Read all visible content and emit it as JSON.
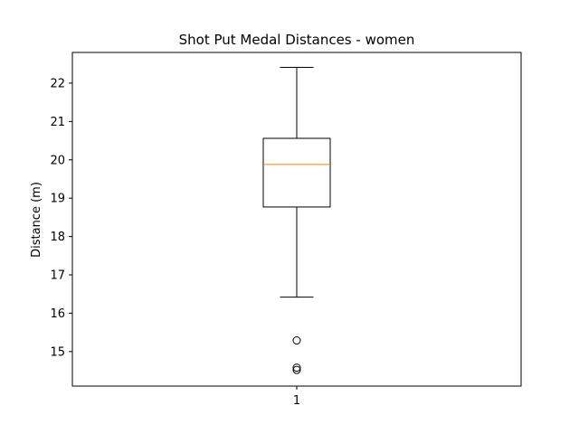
{
  "chart_data": {
    "type": "box",
    "title": "Shot Put Medal Distances - women",
    "xlabel": "",
    "ylabel": "Distance (m)",
    "categories": [
      "1"
    ],
    "ylim": [
      14.1,
      22.8
    ],
    "yticks": [
      15,
      16,
      17,
      18,
      19,
      20,
      21,
      22
    ],
    "grid": false,
    "boxes": [
      {
        "category": "1",
        "whisker_low": 16.42,
        "q1": 18.77,
        "median": 19.88,
        "q3": 20.56,
        "whisker_high": 22.41,
        "outliers": [
          15.29,
          14.58,
          14.52
        ]
      }
    ],
    "colors": {
      "box": "#000000",
      "median": "#ff7f0e",
      "whisker": "#000000",
      "outlier": "#000000"
    }
  }
}
